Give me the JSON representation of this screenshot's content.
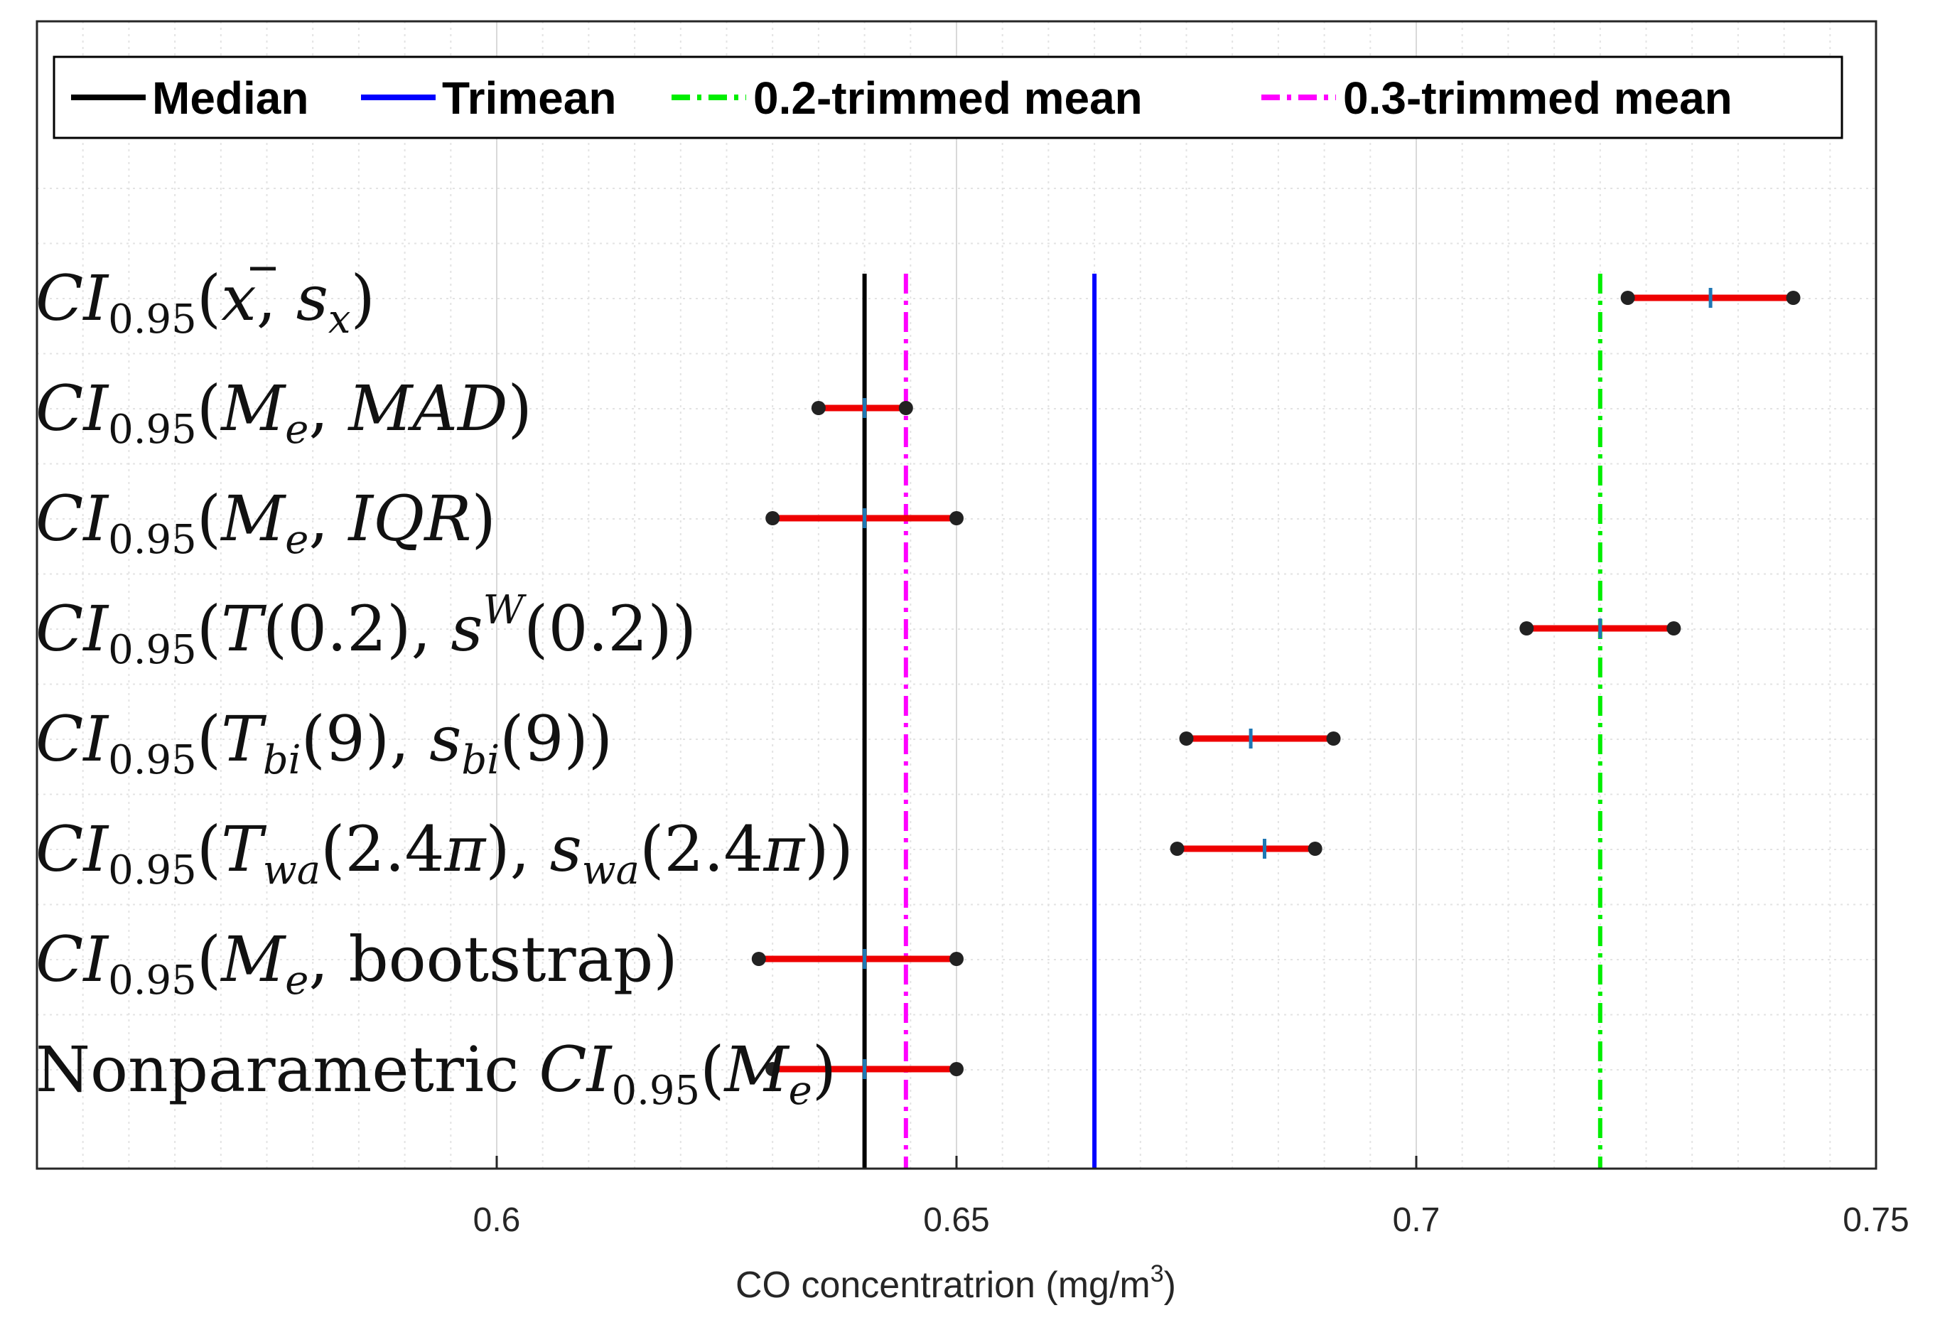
{
  "chart_data": {
    "type": "interval",
    "xlabel": "CO concentratrion (mg/m",
    "xlabel_sup": "3",
    "xlabel_close": ")",
    "xlim": [
      0.55,
      0.75
    ],
    "xticks": [
      0.6,
      0.65,
      0.7,
      0.75
    ],
    "xtick_labels": [
      "0.6",
      "0.65",
      "0.7",
      "0.75"
    ],
    "grid": true,
    "legend": {
      "placement": "top",
      "entries": [
        {
          "label": "Median",
          "color": "#000000",
          "style": "solid"
        },
        {
          "label": "Trimean",
          "color": "#0000ff",
          "style": "solid"
        },
        {
          "label": "0.2-trimmed  mean",
          "color": "#00ee00",
          "style": "dashdot"
        },
        {
          "label": "0.3-trimmed  mean",
          "color": "#ff00ff",
          "style": "dashdot"
        }
      ]
    },
    "reference_lines": [
      {
        "name": "Median",
        "value": 0.64,
        "color": "#000000",
        "style": "solid"
      },
      {
        "name": "Trimean",
        "value": 0.665,
        "color": "#0000ff",
        "style": "solid"
      },
      {
        "name": "0.2-trimmed mean",
        "value": 0.72,
        "color": "#00ee00",
        "style": "dashdot"
      },
      {
        "name": "0.3-trimmed mean",
        "value": 0.6445,
        "color": "#ff00ff",
        "style": "dashdot"
      }
    ],
    "interval_color": "#ee0000",
    "endpoint_color": "#222222",
    "center_color": "#1f77b4",
    "intervals": [
      {
        "label": "CI_0.95(x̄, s_x)",
        "lower": 0.723,
        "upper": 0.741,
        "center": 0.732
      },
      {
        "label": "CI_0.95(M_e, MAD)",
        "lower": 0.635,
        "upper": 0.6445,
        "center": 0.64
      },
      {
        "label": "CI_0.95(M_e, IQR)",
        "lower": 0.63,
        "upper": 0.65,
        "center": 0.64
      },
      {
        "label": "CI_0.95(T(0.2), s^W(0.2))",
        "lower": 0.712,
        "upper": 0.728,
        "center": 0.72
      },
      {
        "label": "CI_0.95(T_bi(9), s_bi(9))",
        "lower": 0.675,
        "upper": 0.691,
        "center": 0.682
      },
      {
        "label": "CI_0.95(T_wa(2.4π), s_wa(2.4π))",
        "lower": 0.674,
        "upper": 0.689,
        "center": 0.6835
      },
      {
        "label": "CI_0.95(M_e, bootstrap)",
        "lower": 0.6285,
        "upper": 0.65,
        "center": 0.64
      },
      {
        "label": "Nonparametric CI_0.95(M_e)",
        "lower": 0.63,
        "upper": 0.65,
        "center": 0.64
      }
    ]
  },
  "labels": {
    "ci": "CI",
    "sub": "0.95",
    "row1": {
      "a": "(",
      "xbar": "x",
      "b": ", ",
      "s": "s",
      "s_sub": "x",
      "c": ")"
    },
    "row2": {
      "a": "(",
      "m": "M",
      "m_sub": "e",
      "b": ", ",
      "c": "MAD",
      "d": ")"
    },
    "row3": {
      "a": "(",
      "m": "M",
      "m_sub": "e",
      "b": ", ",
      "c": "IQR",
      "d": ")"
    },
    "row4": {
      "a": "(",
      "t": "T",
      "b": "(0.2), ",
      "s": "s",
      "s_sup": "W",
      "c": "(0.2))"
    },
    "row5": {
      "a": "(",
      "t": "T",
      "t_sub": "bi",
      "b": "(9), ",
      "s": "s",
      "s_sub": "bi",
      "c": "(9))"
    },
    "row6": {
      "a": "(",
      "t": "T",
      "t_sub": "wa",
      "b": "(2.4",
      "pi1": "π",
      "c": "), ",
      "s": "s",
      "s_sub": "wa",
      "d": "(2.4",
      "pi2": "π",
      "e": "))"
    },
    "row7": {
      "a": "(",
      "m": "M",
      "m_sub": "e",
      "b": ", bootstrap)"
    },
    "row8": {
      "pre": "Nonparametric ",
      "a": "(",
      "m": "M",
      "m_sub": "e",
      "b": ")"
    }
  }
}
